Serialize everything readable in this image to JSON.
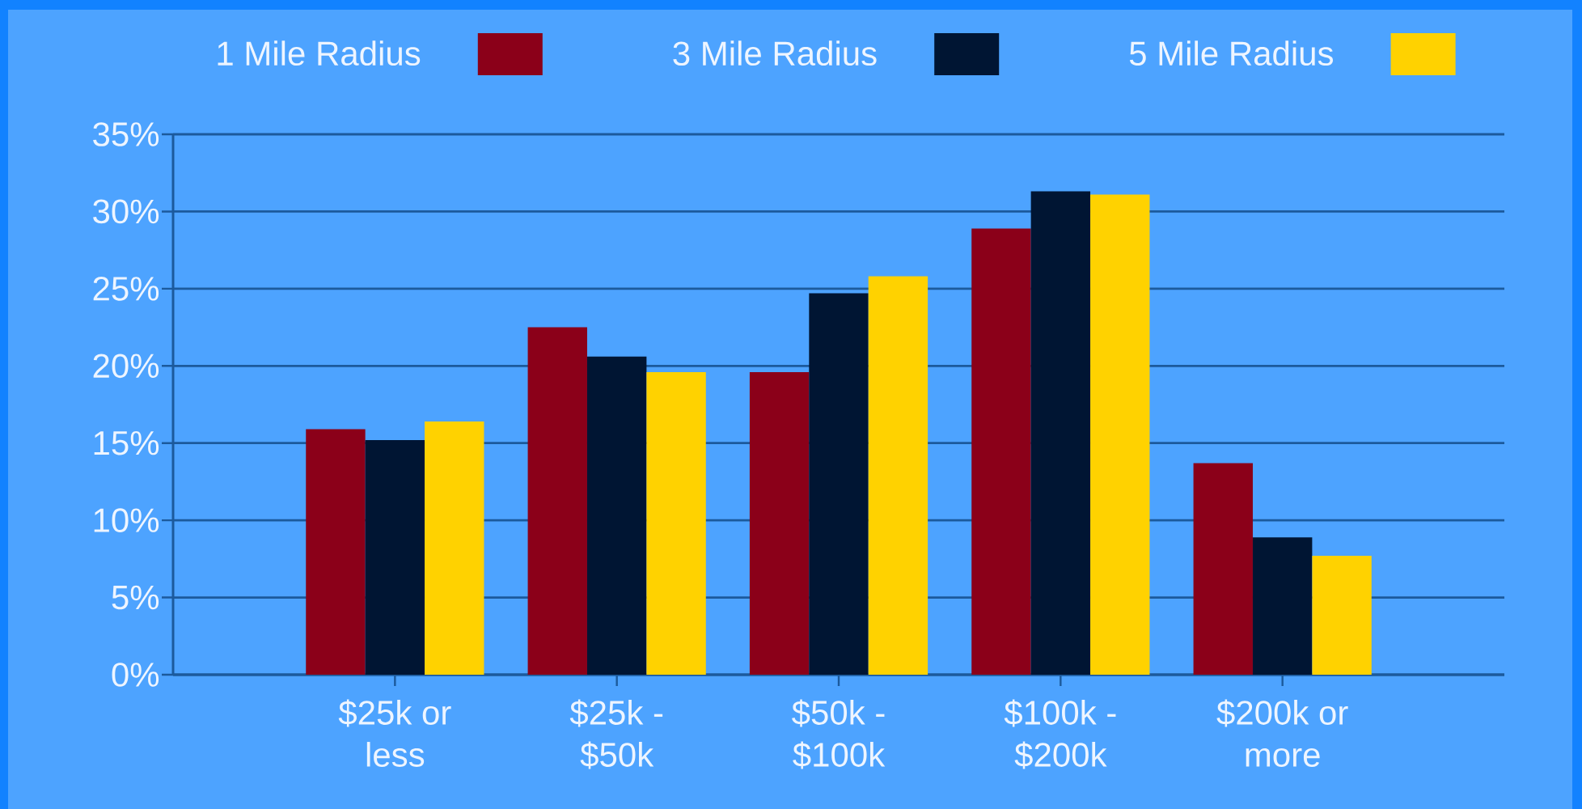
{
  "chart_data": {
    "type": "bar",
    "categories": [
      "$25k or less",
      "$25k - $50k",
      "$50k - $100k",
      "$100k - $200k",
      "$200k or more"
    ],
    "series": [
      {
        "name": "1 Mile Radius",
        "color": "#8b0019",
        "values": [
          15.9,
          22.5,
          19.6,
          28.9,
          13.7
        ]
      },
      {
        "name": "3 Mile Radius",
        "color": "#001533",
        "values": [
          15.2,
          20.6,
          24.7,
          31.3,
          8.9
        ]
      },
      {
        "name": "5 Mile Radius",
        "color": "#ffd200",
        "values": [
          16.4,
          19.6,
          25.8,
          31.1,
          7.7
        ]
      }
    ],
    "ylim": [
      0,
      35
    ],
    "yticks": [
      {
        "value": 0,
        "label": "0%"
      },
      {
        "value": 5,
        "label": "5%"
      },
      {
        "value": 10,
        "label": "10%"
      },
      {
        "value": 15,
        "label": "15%"
      },
      {
        "value": 20,
        "label": "20%"
      },
      {
        "value": 25,
        "label": "25%"
      },
      {
        "value": 30,
        "label": "30%"
      },
      {
        "value": 35,
        "label": "35%"
      }
    ],
    "grid": "y",
    "legend": "top"
  }
}
